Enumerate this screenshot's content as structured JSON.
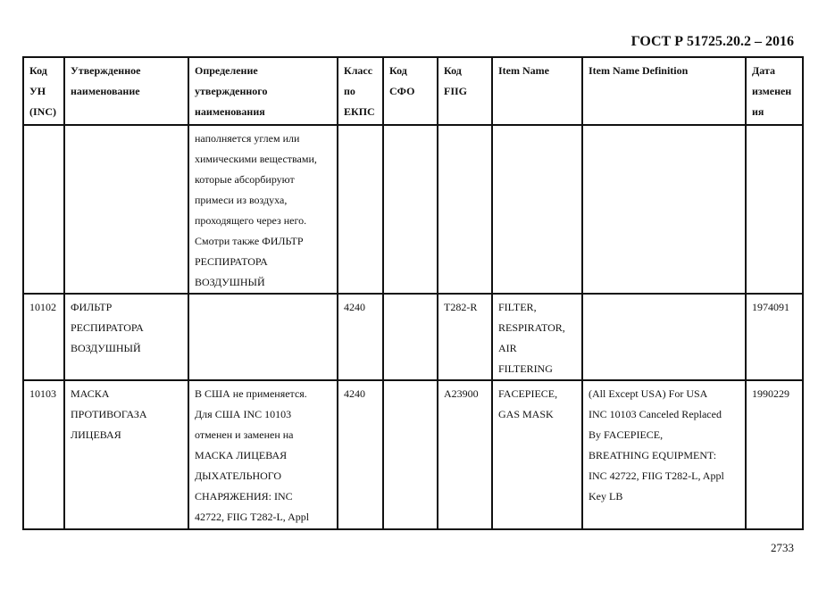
{
  "header": {
    "standard": "ГОСТ Р 51725.20.2 – 2016"
  },
  "table": {
    "columns": [
      "Код\nУН\n(INC)",
      "Утвержденное\nнаименование",
      "Определение\nутвержденного\nнаименования",
      "Класс\nпо\nЕКПС",
      "Код\nСФО",
      "Код\nFIIG",
      "Item Name",
      "Item Name Definition",
      "Дата\nизменен\nия"
    ],
    "rows": [
      [
        "",
        "",
        "наполняется углем или\nхимическими веществами,\nкоторые абсорбируют\nпримеси из воздуха,\nпроходящего через него.\nСмотри также ФИЛЬТР\nРЕСПИРАТОРА\nВОЗДУШНЫЙ",
        "",
        "",
        "",
        "",
        "",
        ""
      ],
      [
        "10102",
        "ФИЛЬТР\nРЕСПИРАТОРА\nВОЗДУШНЫЙ",
        "",
        "4240",
        "",
        "T282-R",
        "FILTER,\nRESPIRATOR,\nAIR\nFILTERING",
        "",
        "1974091"
      ],
      [
        "10103",
        "МАСКА\nПРОТИВОГАЗА\nЛИЦЕВАЯ",
        "В США не применяется.\nДля США INC 10103\nотменен и заменен на\nМАСКА ЛИЦЕВАЯ\nДЫХАТЕЛЬНОГО\nСНАРЯЖЕНИЯ: INC\n42722, FIIG T282-L, Appl",
        "4240",
        "",
        "A23900",
        "FACEPIECE,\nGAS MASK",
        "(All Except USA) For USA\nINC 10103 Canceled Replaced\nBy FACEPIECE,\nBREATHING EQUIPMENT:\nINC 42722, FIIG T282-L, Appl\nKey LB",
        "1990229"
      ]
    ]
  },
  "footer": {
    "page_number": "2733"
  }
}
